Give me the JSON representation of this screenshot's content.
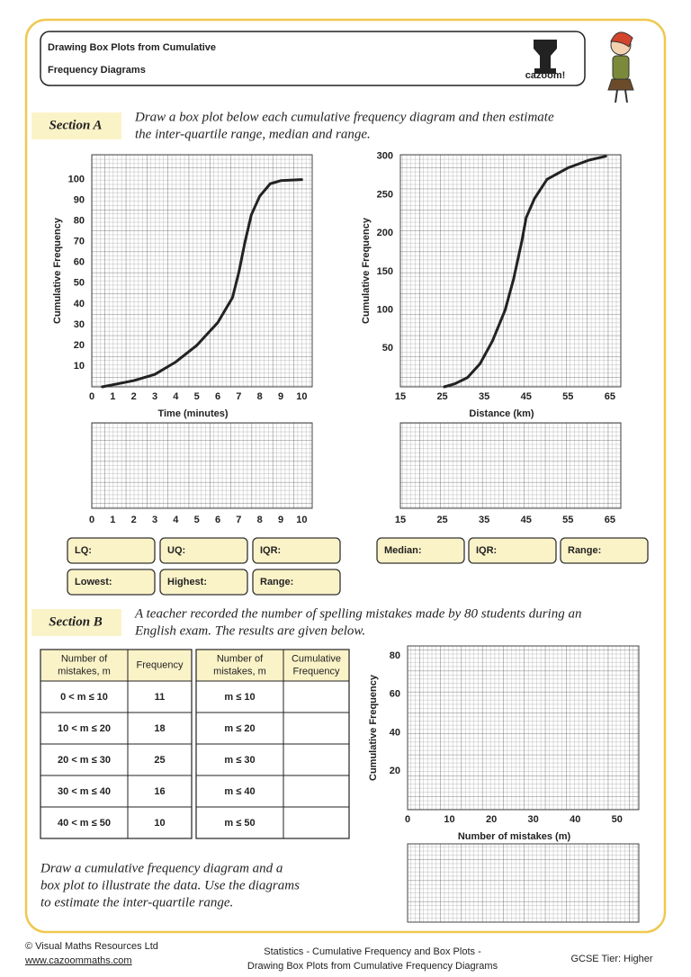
{
  "header": {
    "title": [
      "Drawing Box Plots from Cumulative",
      "Frequency Diagrams"
    ],
    "logo": "cazoom!"
  },
  "section_a": {
    "label": "Section A",
    "instruction": [
      "Draw a box plot below each cumulative frequency diagram and then estimate",
      "the inter-quartile range, median and range."
    ],
    "graphs": [
      {
        "y_label": "Cumulative Frequency",
        "x_label": "Time (minutes)",
        "xlim": [
          0,
          10.5
        ],
        "ylim": [
          0,
          112
        ],
        "xticks": [
          0,
          1,
          2,
          3,
          4,
          5,
          6,
          7,
          8,
          9,
          10
        ],
        "yticks": [
          10,
          20,
          30,
          40,
          50,
          60,
          70,
          80,
          90,
          100
        ],
        "curve": {
          "x": [
            0.5,
            1,
            2,
            3,
            4,
            5,
            6,
            6.7,
            7,
            7.3,
            7.6,
            8,
            8.5,
            9,
            10
          ],
          "y": [
            0,
            1,
            3,
            6,
            12,
            20,
            31,
            43,
            55,
            70,
            83,
            92,
            98,
            99.5,
            100
          ]
        }
      },
      {
        "y_label": "Cumulative Frequency",
        "x_label": "Distance (km)",
        "xlim": [
          15,
          67.6
        ],
        "ylim": [
          0,
          302
        ],
        "xticks": [
          15,
          25,
          35,
          45,
          55,
          65
        ],
        "yticks": [
          50,
          100,
          150,
          200,
          250,
          300
        ],
        "curve": {
          "x": [
            25.5,
            28,
            31,
            34,
            37,
            40,
            42,
            44,
            45,
            47,
            50,
            55,
            60,
            64
          ],
          "y": [
            0,
            4,
            12,
            30,
            60,
            100,
            140,
            190,
            220,
            245,
            270,
            285,
            295,
            300
          ]
        }
      }
    ],
    "answers_left": [
      [
        "LQ:",
        "UQ:",
        "IQR:"
      ],
      [
        "Lowest:",
        "Highest:",
        "Range:"
      ]
    ],
    "answers_right": [
      "Median:",
      "IQR:",
      "Range:"
    ]
  },
  "section_b": {
    "label": "Section B",
    "text": [
      "A teacher recorded the number of spelling  mistakes made by 80 students during an",
      "English exam. The results are given below."
    ],
    "table1": {
      "header": [
        [
          "Number of",
          "mistakes, m"
        ],
        [
          "Frequency"
        ]
      ],
      "rows": [
        [
          "0 < m ≤ 10",
          11
        ],
        [
          "10 < m ≤ 20",
          18
        ],
        [
          "20 < m ≤ 30",
          25
        ],
        [
          "30 < m ≤ 40",
          16
        ],
        [
          "40 < m ≤ 50",
          10
        ]
      ]
    },
    "table2": {
      "header": [
        [
          "Number of",
          "mistakes, m"
        ],
        [
          "Cumulative",
          "Frequency"
        ]
      ],
      "rows": [
        "m ≤ 10",
        "m ≤ 20",
        "m ≤ 30",
        "m ≤ 40",
        "m ≤ 50"
      ]
    },
    "graph": {
      "y_label": "Cumulative Frequency",
      "x_label": "Number of mistakes (m)",
      "xlim": [
        0,
        55.2
      ],
      "ylim": [
        0,
        85.2
      ],
      "xticks": [
        0,
        10,
        20,
        30,
        40,
        50
      ],
      "yticks": [
        20,
        40,
        60,
        80
      ]
    },
    "instruction": [
      "Draw a cumulative frequency diagram and a",
      "box plot to illustrate the data. Use the diagrams",
      "to estimate the inter-quartile range."
    ]
  },
  "footer": {
    "copyright": "© Visual Maths Resources Ltd",
    "link": "www.cazoommaths.com",
    "topic": [
      "Statistics - Cumulative Frequency and Box Plots -",
      "Drawing Box Plots from Cumulative Frequency Diagrams"
    ],
    "tier": "GCSE Tier: Higher"
  }
}
